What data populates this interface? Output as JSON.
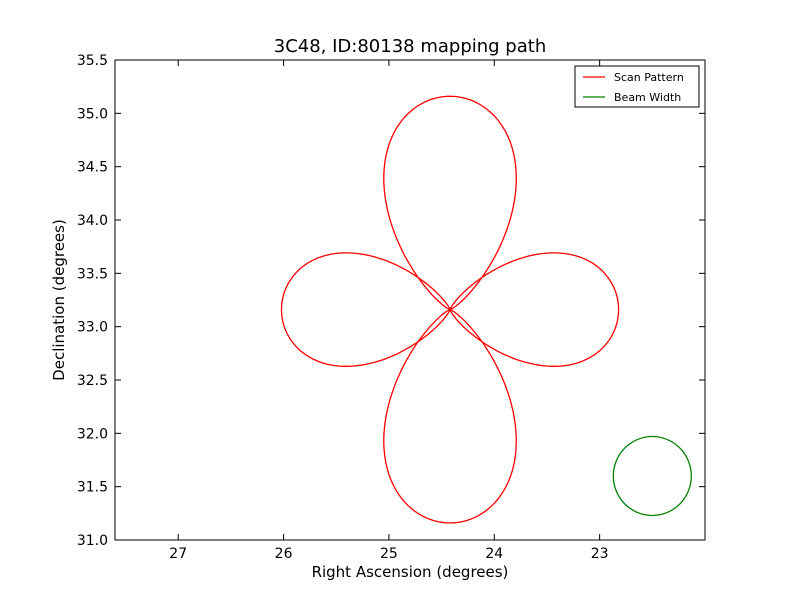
{
  "chart_data": {
    "type": "line",
    "title": "3C48, ID:80138 mapping path",
    "xlabel": "Right Ascension (degrees)",
    "ylabel": "Declination (degrees)",
    "xlim": [
      27.6,
      22.0
    ],
    "ylim": [
      31.0,
      35.5
    ],
    "x_inverted": true,
    "grid": false,
    "legend_position": "top-right",
    "xticks": [
      27,
      26,
      25,
      24,
      23
    ],
    "xtick_labels": [
      "27",
      "26",
      "25",
      "24",
      "23"
    ],
    "yticks": [
      31.0,
      31.5,
      32.0,
      32.5,
      33.0,
      33.5,
      34.0,
      34.5,
      35.0,
      35.5
    ],
    "ytick_labels": [
      "31.0",
      "31.5",
      "32.0",
      "32.5",
      "33.0",
      "33.5",
      "34.0",
      "34.5",
      "35.0",
      "35.5"
    ],
    "series": [
      {
        "name": "Scan Pattern",
        "color": "#ff0000",
        "description": "four-petal rosette scan path",
        "center": [
          24.42,
          33.16
        ],
        "petal_reach_ra": 1.6,
        "petal_reach_dec": 2.0,
        "petal_half_width_ra": 0.65,
        "petal_half_width_dec": 0.55
      },
      {
        "name": "Beam Width",
        "color": "#008000",
        "description": "circle showing beam size",
        "center": [
          22.5,
          31.6
        ],
        "radius_ra": 0.37,
        "radius_dec": 0.37
      }
    ]
  }
}
